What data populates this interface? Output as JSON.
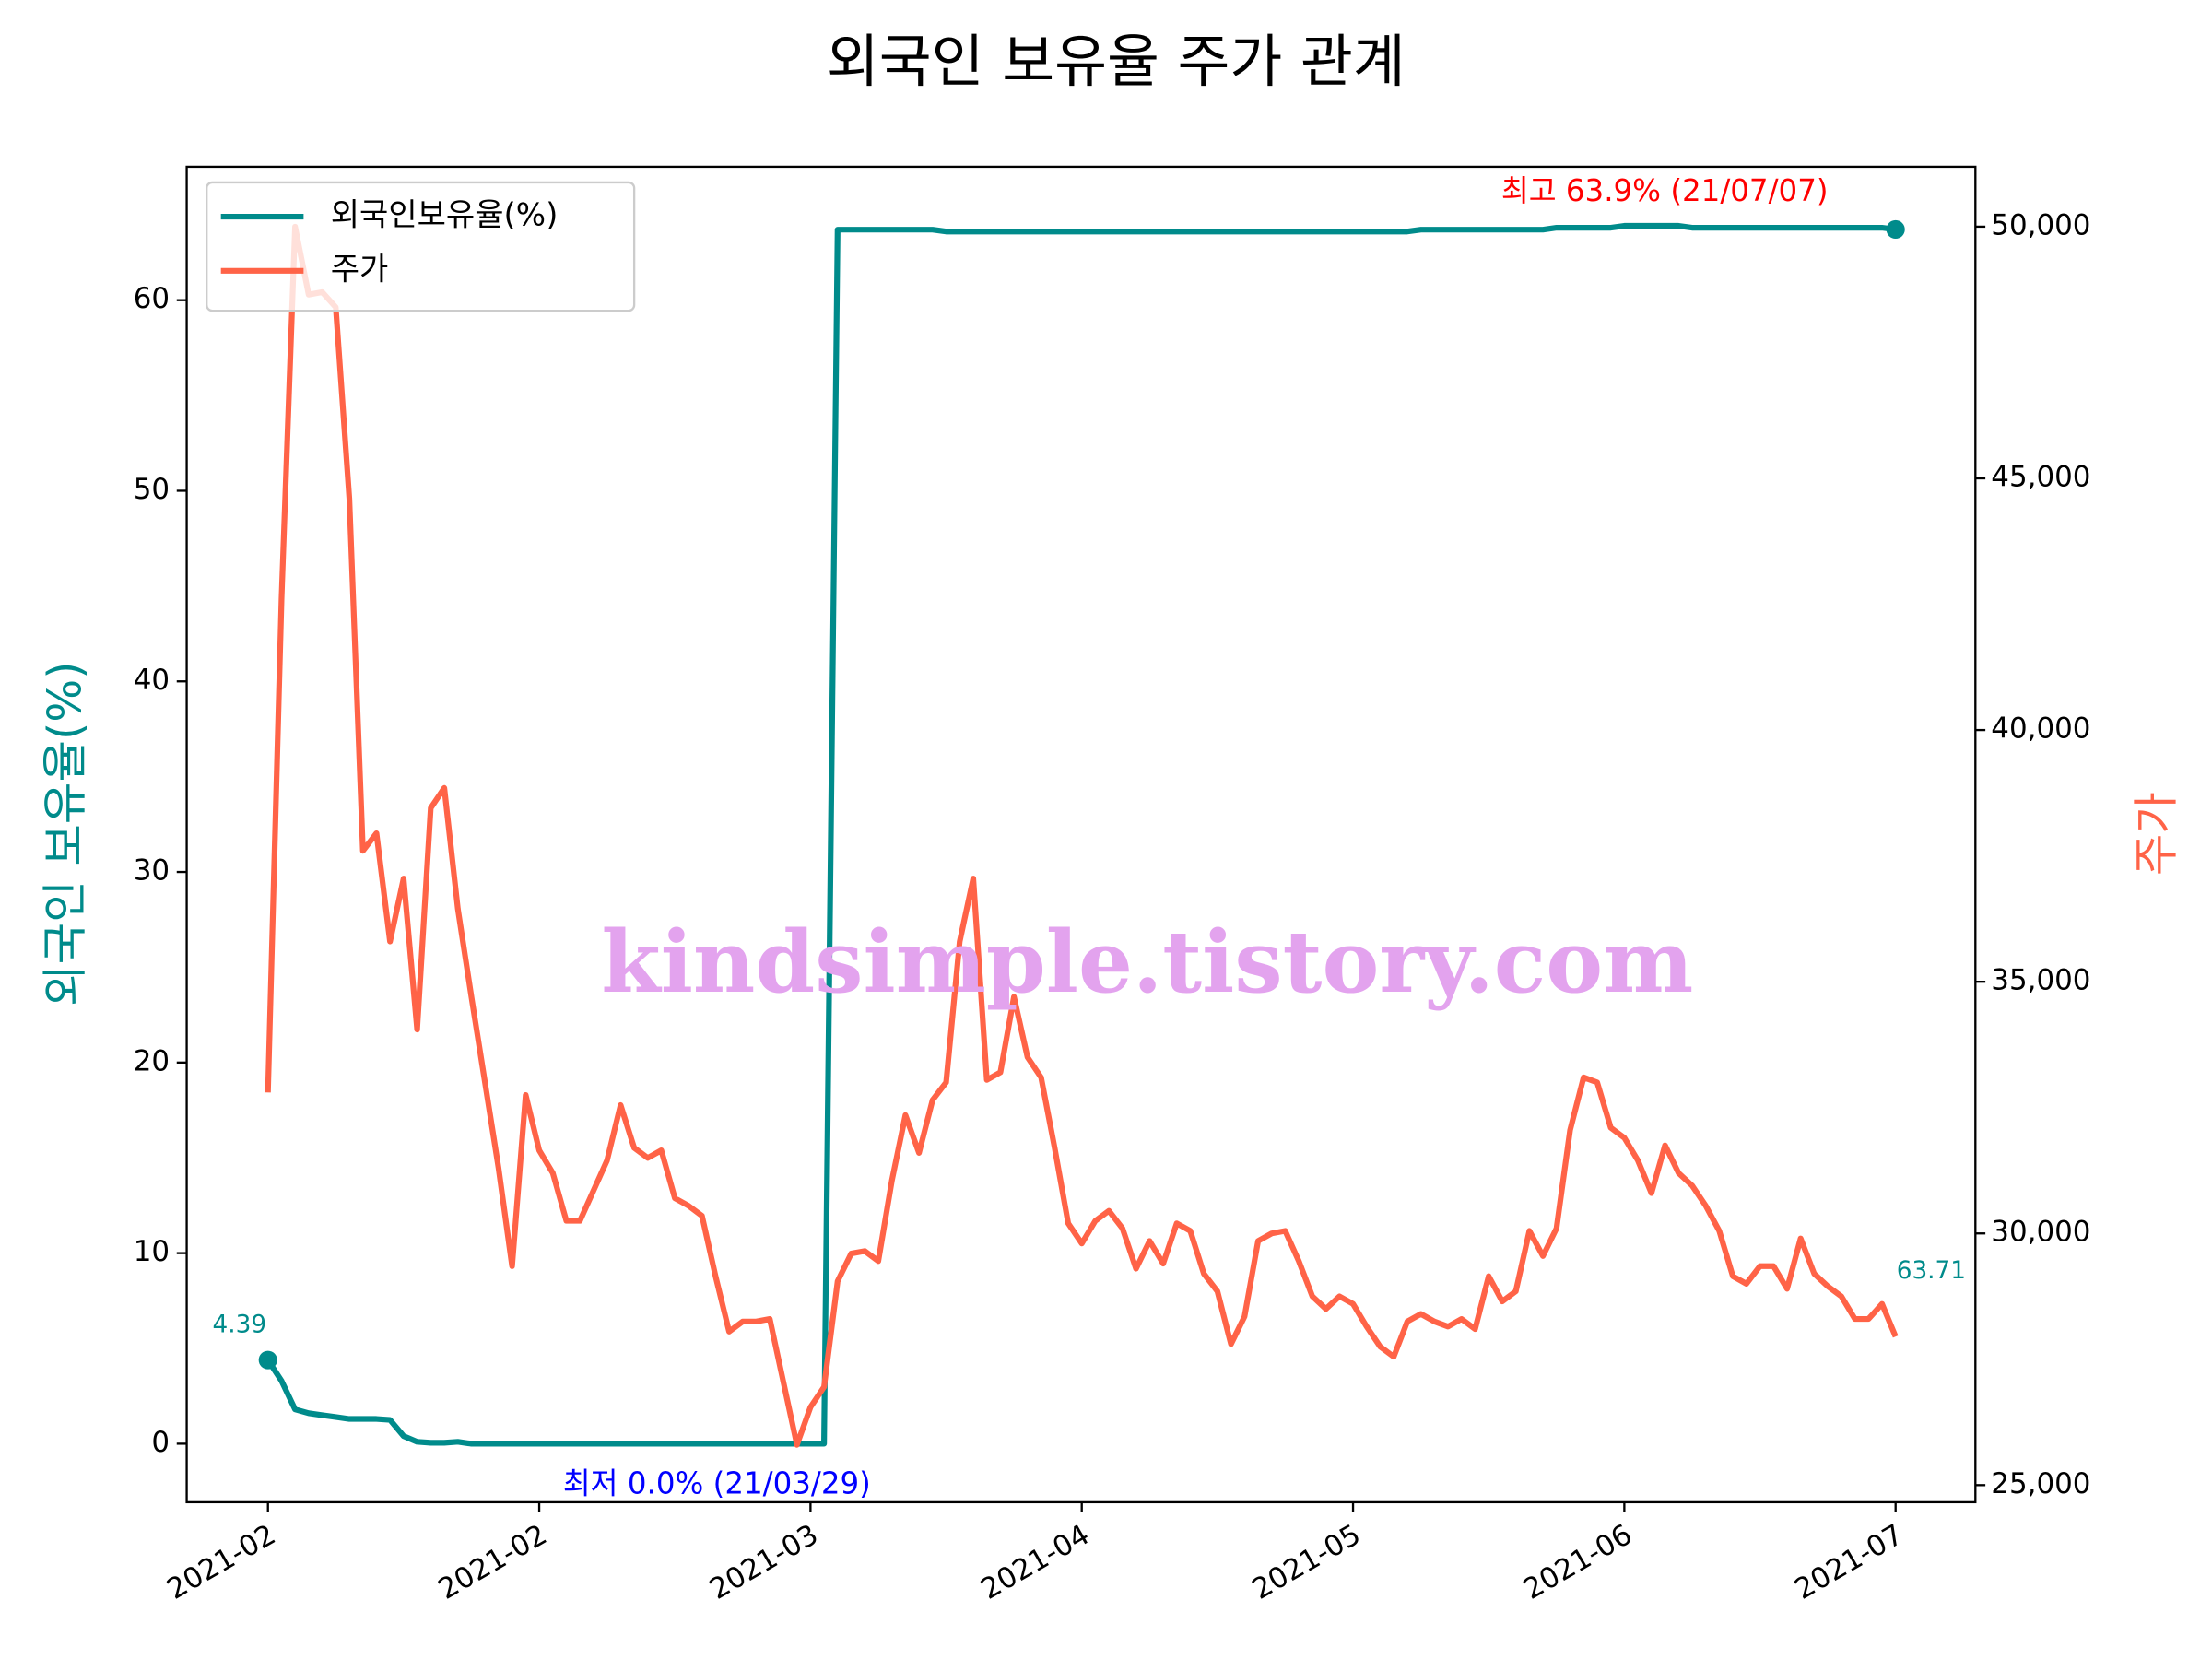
{
  "chart_data": {
    "type": "line",
    "title": "외국인 보유율 주가 관계",
    "ylabel": "외국인 보유율(%)",
    "y2label": "주가",
    "categories": [
      "2021-02",
      null,
      null,
      null,
      null,
      null,
      null,
      null,
      null,
      null,
      null,
      null,
      null,
      null,
      null,
      null,
      null,
      null,
      null,
      null,
      "2021-02",
      null,
      null,
      null,
      null,
      null,
      null,
      null,
      null,
      null,
      null,
      null,
      null,
      null,
      null,
      null,
      null,
      null,
      null,
      null,
      "2021-03",
      null,
      null,
      null,
      null,
      null,
      null,
      null,
      null,
      null,
      null,
      null,
      null,
      null,
      null,
      null,
      null,
      null,
      null,
      null,
      "2021-04",
      null,
      null,
      null,
      null,
      null,
      null,
      null,
      null,
      null,
      null,
      null,
      null,
      null,
      null,
      null,
      null,
      null,
      null,
      null,
      "2021-05",
      null,
      null,
      null,
      null,
      null,
      null,
      null,
      null,
      null,
      null,
      null,
      null,
      null,
      null,
      null,
      null,
      null,
      null,
      null,
      "2021-06",
      null,
      null,
      null,
      null,
      null,
      null,
      null,
      null,
      null,
      null,
      null,
      null,
      null,
      null,
      null,
      null,
      null,
      null,
      null,
      "2021-07"
    ],
    "series": [
      {
        "name": "외국인보유율(%)",
        "color": "#008b8b",
        "axis": "y",
        "values": [
          4.39,
          3.3,
          1.8,
          1.6,
          1.5,
          1.4,
          1.3,
          1.3,
          1.3,
          1.25,
          0.4,
          0.1,
          0.05,
          0.05,
          0.1,
          0,
          0,
          0,
          0,
          0,
          0,
          0,
          0,
          0,
          0,
          0,
          0,
          0,
          0,
          0,
          0,
          0,
          0,
          0,
          0,
          0,
          0,
          0,
          0,
          0,
          0,
          0,
          63.7,
          63.7,
          63.7,
          63.7,
          63.7,
          63.7,
          63.7,
          63.7,
          63.6,
          63.6,
          63.6,
          63.6,
          63.6,
          63.6,
          63.6,
          63.6,
          63.6,
          63.6,
          63.6,
          63.6,
          63.6,
          63.6,
          63.6,
          63.6,
          63.6,
          63.6,
          63.6,
          63.6,
          63.6,
          63.6,
          63.6,
          63.6,
          63.6,
          63.6,
          63.6,
          63.6,
          63.6,
          63.6,
          63.6,
          63.6,
          63.6,
          63.6,
          63.6,
          63.7,
          63.7,
          63.7,
          63.7,
          63.7,
          63.7,
          63.7,
          63.7,
          63.7,
          63.7,
          63.8,
          63.8,
          63.8,
          63.8,
          63.8,
          63.9,
          63.9,
          63.9,
          63.9,
          63.9,
          63.8,
          63.8,
          63.8,
          63.8,
          63.8,
          63.8,
          63.8,
          63.8,
          63.8,
          63.8,
          63.8,
          63.8,
          63.8,
          63.8,
          63.8,
          63.71
        ]
      },
      {
        "name": "주가",
        "color": "#ff6347",
        "axis": "y2",
        "values": [
          32800,
          42600,
          50000,
          48650,
          48700,
          48400,
          44600,
          37600,
          37950,
          35800,
          37050,
          34050,
          38450,
          38850,
          36450,
          34700,
          33000,
          31300,
          29350,
          32750,
          31650,
          31200,
          30250,
          30250,
          30850,
          31450,
          32550,
          31700,
          31500,
          31650,
          30700,
          30550,
          30350,
          29150,
          28050,
          28250,
          28250,
          28300,
          27050,
          25800,
          26550,
          26950,
          29050,
          29600,
          29650,
          29450,
          31050,
          32350,
          31600,
          32650,
          33000,
          35800,
          37050,
          33050,
          33200,
          34700,
          33500,
          33100,
          31700,
          30200,
          29800,
          30250,
          30450,
          30100,
          29300,
          29850,
          29400,
          30200,
          30050,
          29200,
          28850,
          27800,
          28350,
          29850,
          30000,
          30050,
          29450,
          28750,
          28500,
          28750,
          28600,
          28150,
          27750,
          27550,
          28250,
          28400,
          28250,
          28150,
          28300,
          28100,
          29150,
          28650,
          28850,
          30050,
          29550,
          30100,
          32050,
          33100,
          33000,
          32100,
          31900,
          31450,
          30800,
          31750,
          31200,
          30950,
          30550,
          30050,
          29150,
          29000,
          29350,
          29350,
          28900,
          29900,
          29200,
          28950,
          28750,
          28300,
          28300,
          28600,
          27950
        ]
      }
    ],
    "ylim": [
      -3.07,
      67.0
    ],
    "yticks": [
      0,
      10,
      20,
      30,
      40,
      50,
      60
    ],
    "y2lim": [
      24660,
      51190
    ],
    "y2ticks": [
      {
        "value": 25000,
        "label": "25,000"
      },
      {
        "value": 30000,
        "label": "30,000"
      },
      {
        "value": 35000,
        "label": "35,000"
      },
      {
        "value": 40000,
        "label": "40,000"
      },
      {
        "value": 45000,
        "label": "45,000"
      },
      {
        "value": 50000,
        "label": "50,000"
      }
    ],
    "legend": "upper left",
    "annotations": [
      {
        "text": "4.39",
        "color": "#008b8b"
      },
      {
        "text": "63.71",
        "color": "#008b8b"
      },
      {
        "text": "최고 63.9% (21/07/07)",
        "color": "#ff0000"
      },
      {
        "text": "최저 0.0% (21/03/29)",
        "color": "#0000ff"
      }
    ],
    "watermark": "kindsimple.tistory.com"
  }
}
